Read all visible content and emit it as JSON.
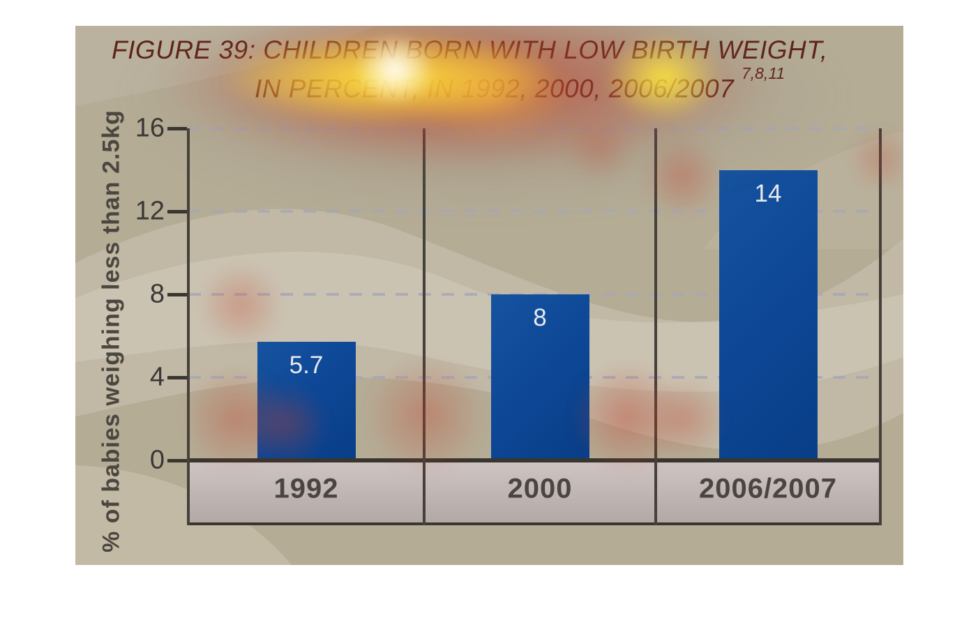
{
  "figure": {
    "title_line1": "FIGURE 39: CHILDREN BORN WITH LOW BIRTH WEIGHT,",
    "title_line2": "IN PERCENT, IN 1992, 2000, 2006/2007",
    "title_superscript": "7,8,11"
  },
  "chart_data": {
    "type": "bar",
    "title": "FIGURE 39: CHILDREN BORN WITH LOW BIRTH WEIGHT, IN PERCENT, IN 1992, 2000, 2006/2007 7,8,11",
    "categories": [
      "1992",
      "2000",
      "2006/2007"
    ],
    "values": [
      5.7,
      8,
      14
    ],
    "value_labels": [
      "5.7",
      "8",
      "14"
    ],
    "ylabel": "% of babies weighing less than 2.5kg",
    "xlabel": "",
    "yticks": [
      0,
      4,
      8,
      12,
      16
    ],
    "ytick_labels": [
      "0",
      "4",
      "8",
      "12",
      "16"
    ],
    "ylim": [
      0,
      16
    ],
    "grid": "horizontal-dashed",
    "legend": "none",
    "bar_color": "#0d4796",
    "bar_label_color": "#e8eaec"
  },
  "colors": {
    "page_background": "#ffffff",
    "figure_background": "#b5ac96",
    "wave_light": "#cdc6b5",
    "axis": "#39352f",
    "grid_dash": "#a7a8b6",
    "tick_text": "#3a3834",
    "title_text": "#5f2419",
    "band_top": "#cfc5c3",
    "band_bottom": "#b2a8a6",
    "band_text": "#4a4540",
    "heat_gray": "rgba(120,108,100,0.30)",
    "heat_red": "rgba(202,50,30,0.62)",
    "heat_orange": "rgba(255,165,40,0.60)",
    "heat_yellow": "rgba(255,232,60,0.92)",
    "heat_white": "rgba(255,255,255,0.97)",
    "heat_faint": "rgba(198,62,40,0.36)"
  }
}
